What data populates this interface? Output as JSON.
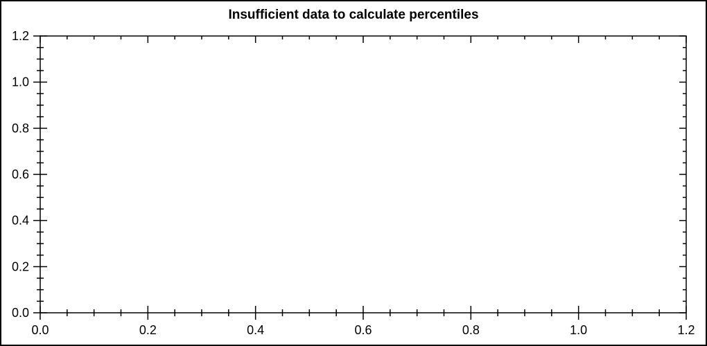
{
  "window": {
    "background_color": "#ffffff",
    "border_color": "#000000"
  },
  "chart_data": {
    "type": "scatter",
    "title": "Insufficient data to calculate percentiles",
    "series": [],
    "no_data": true,
    "xlabel": "",
    "ylabel": "",
    "xlim": [
      0.0,
      1.2
    ],
    "ylim": [
      0.0,
      1.2
    ],
    "x_ticks": [
      0.0,
      0.2,
      0.4,
      0.6,
      0.8,
      1.0,
      1.2
    ],
    "y_ticks": [
      0.0,
      0.2,
      0.4,
      0.6,
      0.8,
      1.0,
      1.2
    ],
    "x_tick_labels": [
      "0.0",
      "0.2",
      "0.4",
      "0.6",
      "0.8",
      "1.0",
      "1.2"
    ],
    "y_tick_labels": [
      "0.0",
      "0.2",
      "0.4",
      "0.6",
      "0.8",
      "1.0",
      "1.2"
    ],
    "minor_divisions_per_major": 4,
    "grid": false,
    "legend": false,
    "axis_color": "#000000",
    "text_color": "#000000",
    "plot_background": "#ffffff",
    "tick_style": "major and minor ticks cross bottom/left axes; inward-only mirrored ticks on top/right"
  }
}
